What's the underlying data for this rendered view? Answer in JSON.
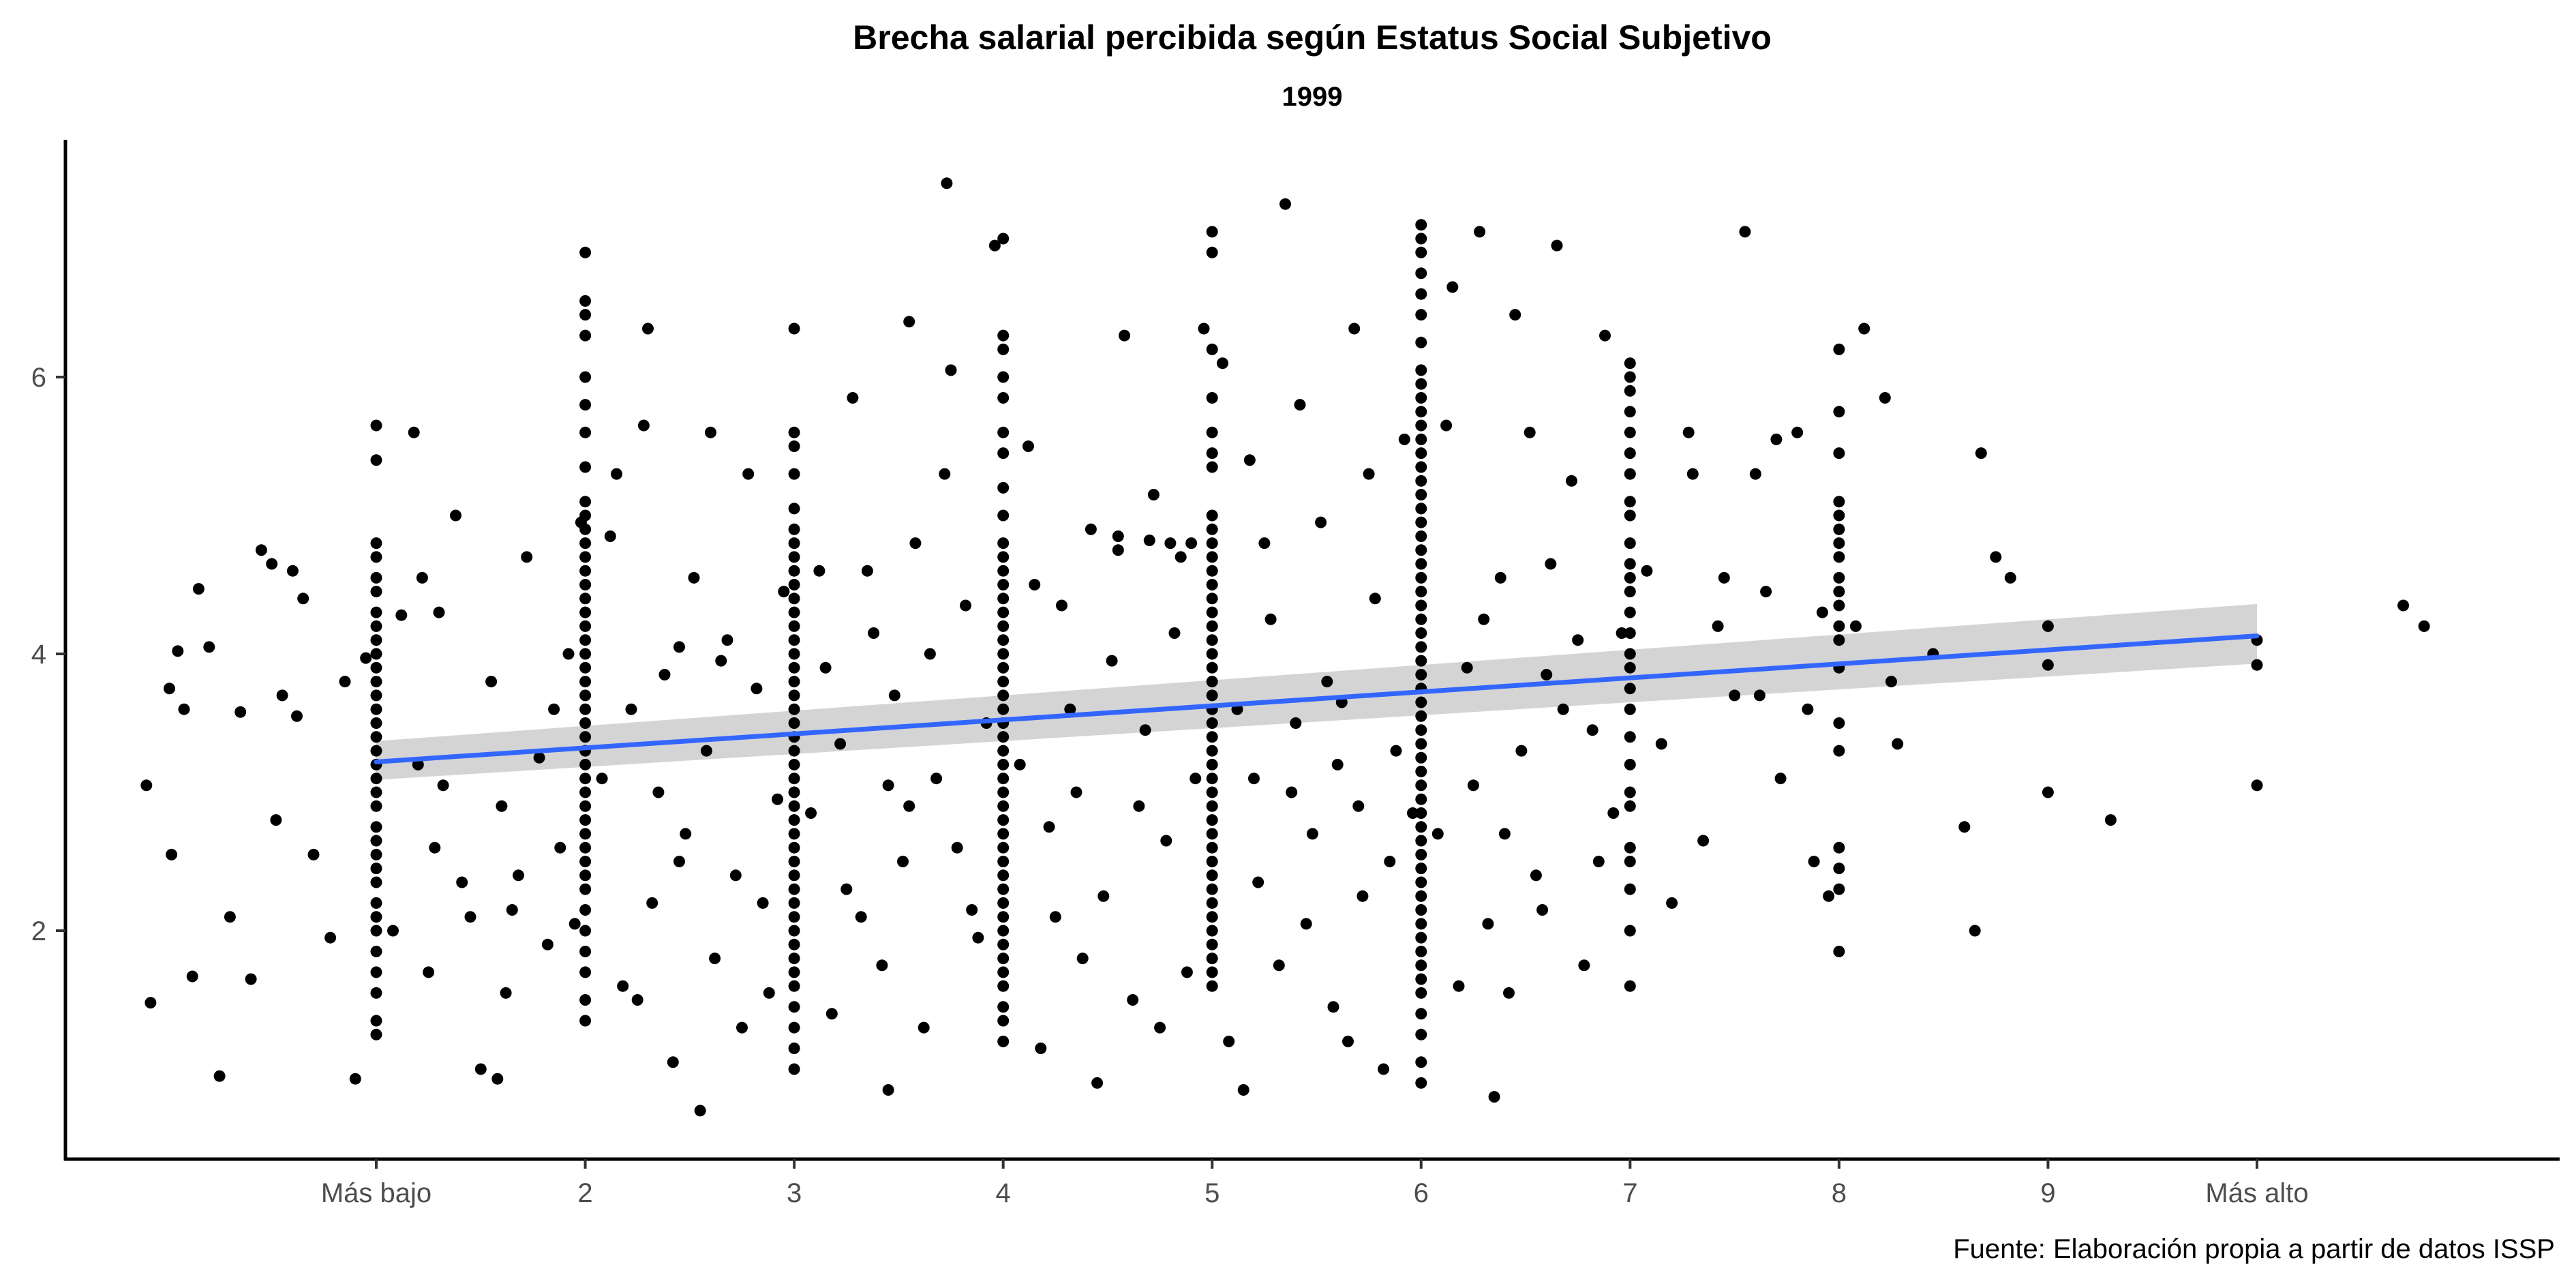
{
  "chart_data": {
    "type": "scatter",
    "title": "Brecha salarial percibida según Estatus Social Subjetivo",
    "subtitle": "1999",
    "caption": "Fuente: Elaboración propia a partir de datos ISSP",
    "xlabel": "",
    "ylabel": "",
    "x_ticks": [
      {
        "value": 1,
        "label": "Más bajo"
      },
      {
        "value": 2,
        "label": "2"
      },
      {
        "value": 3,
        "label": "3"
      },
      {
        "value": 4,
        "label": "4"
      },
      {
        "value": 5,
        "label": "5"
      },
      {
        "value": 6,
        "label": "6"
      },
      {
        "value": 7,
        "label": "7"
      },
      {
        "value": 8,
        "label": "8"
      },
      {
        "value": 9,
        "label": "9"
      },
      {
        "value": 10,
        "label": "Más alto"
      }
    ],
    "y_ticks": [
      {
        "value": 2,
        "label": "2"
      },
      {
        "value": 4,
        "label": "4"
      },
      {
        "value": 6,
        "label": "6"
      }
    ],
    "xlim": [
      -0.5,
      11.5
    ],
    "ylim": [
      0.35,
      7.7
    ],
    "grid": false,
    "legend": "none",
    "jitter_points": [
      [
        -0.1,
        3.05
      ],
      [
        -0.08,
        1.48
      ],
      [
        0.02,
        2.55
      ],
      [
        0.05,
        4.02
      ],
      [
        0.08,
        3.6
      ],
      [
        0.12,
        1.67
      ],
      [
        0.15,
        4.47
      ],
      [
        0.2,
        4.05
      ],
      [
        0.3,
        2.1
      ],
      [
        0.35,
        3.58
      ],
      [
        0.45,
        4.75
      ],
      [
        0.5,
        4.65
      ],
      [
        0.52,
        2.8
      ],
      [
        0.55,
        3.7
      ],
      [
        0.6,
        4.6
      ],
      [
        0.65,
        4.4
      ],
      [
        0.7,
        2.55
      ],
      [
        0.78,
        1.95
      ],
      [
        0.85,
        3.8
      ],
      [
        0.9,
        0.93
      ],
      [
        0.95,
        3.97
      ],
      [
        1.08,
        2.0
      ],
      [
        1.12,
        4.28
      ],
      [
        1.18,
        5.6
      ],
      [
        1.2,
        3.2
      ],
      [
        1.22,
        4.55
      ],
      [
        1.25,
        1.7
      ],
      [
        1.28,
        2.6
      ],
      [
        1.32,
        3.05
      ],
      [
        1.38,
        5.0
      ],
      [
        1.45,
        2.1
      ],
      [
        1.5,
        1.0
      ],
      [
        1.55,
        3.8
      ],
      [
        1.6,
        2.9
      ],
      [
        1.62,
        1.55
      ],
      [
        1.68,
        2.4
      ],
      [
        1.72,
        4.7
      ],
      [
        1.78,
        3.25
      ],
      [
        1.82,
        1.9
      ],
      [
        1.88,
        2.6
      ],
      [
        1.92,
        4.0
      ],
      [
        1.95,
        2.05
      ],
      [
        1.3,
        4.3
      ],
      [
        1.41,
        2.35
      ],
      [
        1.58,
        0.93
      ],
      [
        1.65,
        2.15
      ],
      [
        1.85,
        3.6
      ],
      [
        1.98,
        4.95
      ],
      [
        0.25,
        0.95
      ],
      [
        0.4,
        1.65
      ],
      [
        0.01,
        3.75
      ],
      [
        0.62,
        3.55
      ],
      [
        2.08,
        3.1
      ],
      [
        2.12,
        4.85
      ],
      [
        2.18,
        1.6
      ],
      [
        2.22,
        3.6
      ],
      [
        2.28,
        5.65
      ],
      [
        2.32,
        2.2
      ],
      [
        2.38,
        3.85
      ],
      [
        2.42,
        1.05
      ],
      [
        2.48,
        2.7
      ],
      [
        2.52,
        4.55
      ],
      [
        2.58,
        3.3
      ],
      [
        2.62,
        1.8
      ],
      [
        2.68,
        4.1
      ],
      [
        2.72,
        2.4
      ],
      [
        2.78,
        5.3
      ],
      [
        2.82,
        3.75
      ],
      [
        2.88,
        1.55
      ],
      [
        2.92,
        2.95
      ],
      [
        2.95,
        4.45
      ],
      [
        2.15,
        5.3
      ],
      [
        2.25,
        1.5
      ],
      [
        2.35,
        3.0
      ],
      [
        2.45,
        2.5
      ],
      [
        2.55,
        0.7
      ],
      [
        2.65,
        3.95
      ],
      [
        2.75,
        1.3
      ],
      [
        2.85,
        2.2
      ],
      [
        2.45,
        4.05
      ],
      [
        2.3,
        6.35
      ],
      [
        2.6,
        5.6
      ],
      [
        3.08,
        2.85
      ],
      [
        3.12,
        4.6
      ],
      [
        3.18,
        1.4
      ],
      [
        3.22,
        3.35
      ],
      [
        3.28,
        5.85
      ],
      [
        3.32,
        2.1
      ],
      [
        3.38,
        4.15
      ],
      [
        3.42,
        1.75
      ],
      [
        3.48,
        3.7
      ],
      [
        3.52,
        2.5
      ],
      [
        3.58,
        4.8
      ],
      [
        3.62,
        1.3
      ],
      [
        3.68,
        3.1
      ],
      [
        3.72,
        5.3
      ],
      [
        3.78,
        2.6
      ],
      [
        3.82,
        4.35
      ],
      [
        3.88,
        1.95
      ],
      [
        3.92,
        3.5
      ],
      [
        3.96,
        6.95
      ],
      [
        3.15,
        3.9
      ],
      [
        3.25,
        2.3
      ],
      [
        3.35,
        4.6
      ],
      [
        3.45,
        0.85
      ],
      [
        3.55,
        2.9
      ],
      [
        3.65,
        4.0
      ],
      [
        3.75,
        6.05
      ],
      [
        3.85,
        2.15
      ],
      [
        3.55,
        6.4
      ],
      [
        3.73,
        7.4
      ],
      [
        3.45,
        3.05
      ],
      [
        4.08,
        3.2
      ],
      [
        4.12,
        5.5
      ],
      [
        4.18,
        1.15
      ],
      [
        4.22,
        2.75
      ],
      [
        4.28,
        4.35
      ],
      [
        4.32,
        3.6
      ],
      [
        4.38,
        1.8
      ],
      [
        4.42,
        4.9
      ],
      [
        4.48,
        2.25
      ],
      [
        4.52,
        3.95
      ],
      [
        4.58,
        6.3
      ],
      [
        4.62,
        1.5
      ],
      [
        4.68,
        3.45
      ],
      [
        4.72,
        5.15
      ],
      [
        4.78,
        2.65
      ],
      [
        4.82,
        4.15
      ],
      [
        4.88,
        1.7
      ],
      [
        4.92,
        3.1
      ],
      [
        4.96,
        6.35
      ],
      [
        4.15,
        4.5
      ],
      [
        4.25,
        2.1
      ],
      [
        4.35,
        3.0
      ],
      [
        4.45,
        0.9
      ],
      [
        4.55,
        4.75
      ],
      [
        4.65,
        2.9
      ],
      [
        4.75,
        1.3
      ],
      [
        4.85,
        4.7
      ],
      [
        4.55,
        4.85
      ],
      [
        4.7,
        4.82
      ],
      [
        4.8,
        4.8
      ],
      [
        4.9,
        4.8
      ],
      [
        5.08,
        1.2
      ],
      [
        5.12,
        3.6
      ],
      [
        5.18,
        5.4
      ],
      [
        5.22,
        2.35
      ],
      [
        5.28,
        4.25
      ],
      [
        5.32,
        1.75
      ],
      [
        5.38,
        3.0
      ],
      [
        5.42,
        5.8
      ],
      [
        5.48,
        2.7
      ],
      [
        5.52,
        4.95
      ],
      [
        5.58,
        1.45
      ],
      [
        5.62,
        3.65
      ],
      [
        5.68,
        6.35
      ],
      [
        5.72,
        2.25
      ],
      [
        5.78,
        4.4
      ],
      [
        5.82,
        1.0
      ],
      [
        5.88,
        3.3
      ],
      [
        5.92,
        5.55
      ],
      [
        5.96,
        2.85
      ],
      [
        5.15,
        0.85
      ],
      [
        5.25,
        4.8
      ],
      [
        5.35,
        7.25
      ],
      [
        5.45,
        2.05
      ],
      [
        5.55,
        3.8
      ],
      [
        5.65,
        1.2
      ],
      [
        5.75,
        5.3
      ],
      [
        5.85,
        2.5
      ],
      [
        5.05,
        6.1
      ],
      [
        5.2,
        3.1
      ],
      [
        5.4,
        3.5
      ],
      [
        5.6,
        3.2
      ],
      [
        5.7,
        2.9
      ],
      [
        6.08,
        2.7
      ],
      [
        6.12,
        5.65
      ],
      [
        6.18,
        1.6
      ],
      [
        6.22,
        3.9
      ],
      [
        6.28,
        7.05
      ],
      [
        6.32,
        2.05
      ],
      [
        6.38,
        4.55
      ],
      [
        6.42,
        1.55
      ],
      [
        6.48,
        3.3
      ],
      [
        6.52,
        5.6
      ],
      [
        6.58,
        2.15
      ],
      [
        6.62,
        4.65
      ],
      [
        6.68,
        3.6
      ],
      [
        6.72,
        5.25
      ],
      [
        6.78,
        1.75
      ],
      [
        6.82,
        3.45
      ],
      [
        6.88,
        6.3
      ],
      [
        6.92,
        2.85
      ],
      [
        6.96,
        4.15
      ],
      [
        6.15,
        6.65
      ],
      [
        6.25,
        3.05
      ],
      [
        6.35,
        0.8
      ],
      [
        6.45,
        6.45
      ],
      [
        6.55,
        2.4
      ],
      [
        6.65,
        6.95
      ],
      [
        6.75,
        4.1
      ],
      [
        6.85,
        2.5
      ],
      [
        6.3,
        4.25
      ],
      [
        6.4,
        2.7
      ],
      [
        6.6,
        3.85
      ],
      [
        7.08,
        4.6
      ],
      [
        7.15,
        3.35
      ],
      [
        7.2,
        2.2
      ],
      [
        7.28,
        5.6
      ],
      [
        7.35,
        2.65
      ],
      [
        7.42,
        4.2
      ],
      [
        7.5,
        3.7
      ],
      [
        7.6,
        5.3
      ],
      [
        7.65,
        4.45
      ],
      [
        7.72,
        3.1
      ],
      [
        7.8,
        5.6
      ],
      [
        7.88,
        2.5
      ],
      [
        7.92,
        4.3
      ],
      [
        7.95,
        2.25
      ],
      [
        7.55,
        7.05
      ],
      [
        7.7,
        5.55
      ],
      [
        7.85,
        3.6
      ],
      [
        7.3,
        5.3
      ],
      [
        7.45,
        4.55
      ],
      [
        7.62,
        3.7
      ],
      [
        8.08,
        4.2
      ],
      [
        8.22,
        5.85
      ],
      [
        8.28,
        3.35
      ],
      [
        8.12,
        6.35
      ],
      [
        8.6,
        2.75
      ],
      [
        8.68,
        5.45
      ],
      [
        8.75,
        4.7
      ],
      [
        8.82,
        4.55
      ],
      [
        8.65,
        2.0
      ],
      [
        8.45,
        4.0
      ],
      [
        8.25,
        3.8
      ],
      [
        9.3,
        2.8
      ],
      [
        10.7,
        4.35
      ],
      [
        10.8,
        4.2
      ]
    ],
    "stacked_columns": [
      {
        "x": 1,
        "y": [
          1.25,
          1.35,
          1.55,
          1.7,
          1.85,
          2.0,
          2.1,
          2.2,
          2.35,
          2.45,
          2.55,
          2.65,
          2.75,
          2.9,
          3.0,
          3.1,
          3.2,
          3.3,
          3.4,
          3.5,
          3.6,
          3.7,
          3.8,
          3.9,
          4.0,
          4.1,
          4.2,
          4.3,
          4.45,
          4.55,
          4.7,
          4.8,
          5.4,
          5.65
        ]
      },
      {
        "x": 2,
        "y": [
          1.35,
          1.5,
          1.7,
          1.85,
          2.0,
          2.15,
          2.3,
          2.4,
          2.5,
          2.6,
          2.7,
          2.8,
          2.9,
          3.0,
          3.1,
          3.2,
          3.3,
          3.4,
          3.5,
          3.6,
          3.7,
          3.8,
          3.9,
          4.0,
          4.1,
          4.2,
          4.3,
          4.4,
          4.5,
          4.6,
          4.7,
          4.8,
          4.9,
          5.0,
          5.1,
          5.35,
          5.6,
          5.8,
          6.0,
          6.3,
          6.45,
          6.55,
          6.9
        ]
      },
      {
        "x": 3,
        "y": [
          1.0,
          1.15,
          1.3,
          1.45,
          1.6,
          1.7,
          1.8,
          1.9,
          2.0,
          2.1,
          2.2,
          2.3,
          2.4,
          2.5,
          2.6,
          2.7,
          2.8,
          2.9,
          3.0,
          3.1,
          3.2,
          3.3,
          3.4,
          3.5,
          3.6,
          3.7,
          3.8,
          3.9,
          4.0,
          4.1,
          4.2,
          4.3,
          4.4,
          4.5,
          4.6,
          4.7,
          4.8,
          4.9,
          5.05,
          5.3,
          5.5,
          5.6,
          6.35
        ]
      },
      {
        "x": 4,
        "y": [
          1.2,
          1.35,
          1.45,
          1.6,
          1.7,
          1.8,
          1.9,
          2.0,
          2.1,
          2.2,
          2.3,
          2.4,
          2.5,
          2.6,
          2.7,
          2.8,
          2.9,
          3.0,
          3.1,
          3.2,
          3.3,
          3.4,
          3.5,
          3.6,
          3.7,
          3.8,
          3.9,
          4.0,
          4.1,
          4.2,
          4.3,
          4.4,
          4.5,
          4.6,
          4.7,
          4.8,
          5.0,
          5.2,
          5.45,
          5.6,
          5.85,
          6.0,
          6.2,
          6.3,
          7.0
        ]
      },
      {
        "x": 5,
        "y": [
          1.6,
          1.7,
          1.8,
          1.9,
          2.0,
          2.1,
          2.2,
          2.3,
          2.4,
          2.5,
          2.6,
          2.7,
          2.8,
          2.9,
          3.0,
          3.1,
          3.2,
          3.3,
          3.4,
          3.5,
          3.6,
          3.7,
          3.8,
          3.9,
          4.0,
          4.1,
          4.2,
          4.3,
          4.4,
          4.5,
          4.6,
          4.7,
          4.8,
          4.9,
          5.0,
          5.35,
          5.45,
          5.6,
          5.85,
          6.2,
          6.9,
          7.05
        ]
      },
      {
        "x": 6,
        "y": [
          0.9,
          1.05,
          1.25,
          1.4,
          1.55,
          1.65,
          1.75,
          1.85,
          1.95,
          2.05,
          2.15,
          2.25,
          2.35,
          2.45,
          2.55,
          2.65,
          2.75,
          2.85,
          2.95,
          3.05,
          3.15,
          3.25,
          3.35,
          3.45,
          3.55,
          3.65,
          3.75,
          3.85,
          3.95,
          4.05,
          4.15,
          4.25,
          4.35,
          4.45,
          4.55,
          4.65,
          4.75,
          4.85,
          4.95,
          5.05,
          5.15,
          5.25,
          5.35,
          5.45,
          5.55,
          5.65,
          5.75,
          5.85,
          5.95,
          6.05,
          6.25,
          6.45,
          6.6,
          6.75,
          6.9,
          7.0,
          7.1
        ]
      },
      {
        "x": 7,
        "y": [
          1.6,
          2.0,
          2.3,
          2.5,
          2.6,
          2.9,
          3.0,
          3.2,
          3.4,
          3.6,
          3.75,
          3.9,
          4.0,
          4.15,
          4.3,
          4.45,
          4.55,
          4.65,
          4.8,
          5.0,
          5.1,
          5.3,
          5.45,
          5.6,
          5.75,
          5.9,
          6.0,
          6.1
        ]
      },
      {
        "x": 8,
        "y": [
          1.85,
          2.3,
          2.45,
          2.6,
          3.3,
          3.5,
          3.9,
          4.1,
          4.2,
          4.35,
          4.45,
          4.55,
          4.7,
          4.8,
          4.9,
          5.0,
          5.1,
          5.45,
          5.75,
          6.2
        ]
      },
      {
        "x": 9,
        "y": [
          3.0,
          3.92,
          4.2
        ]
      },
      {
        "x": 10,
        "y": [
          3.05,
          3.92,
          4.1
        ]
      }
    ],
    "trend_line": {
      "method": "linear",
      "x_start": 1,
      "y_start": 3.22,
      "x_end": 10,
      "y_end": 4.13,
      "band_start": [
        3.09,
        3.37
      ],
      "band_end": [
        3.93,
        4.36
      ],
      "line_color": "#3366FF",
      "band_color": "#CCCCCC"
    }
  }
}
